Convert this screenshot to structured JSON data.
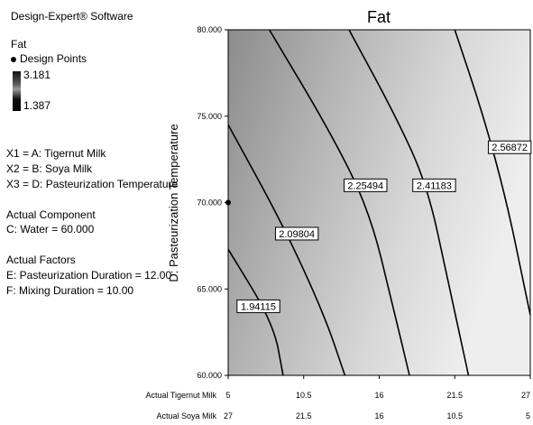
{
  "software_title": "Design-Expert® Software",
  "response_name": "Fat",
  "design_points_label": "Design Points",
  "color_scale": {
    "high": "3.181",
    "low": "1.387",
    "high_color": "#111111",
    "low_color": "#e6e6e6"
  },
  "factor_defs": [
    "X1 = A: Tigernut Milk",
    "X2 = B: Soya Milk",
    "X3 = D: Pasteurization Temperature"
  ],
  "actual_component": {
    "heading": "Actual Component",
    "value": "C: Water = 60.000"
  },
  "actual_factors": {
    "heading": "Actual Factors",
    "items": [
      "E: Pasteurization Duration = 12.00",
      "F: Mixing Duration = 10.00"
    ]
  },
  "chart_data": {
    "type": "contour",
    "title": "Fat",
    "ylabel": "D: Pasteurization Temperature",
    "ylim": [
      60,
      80
    ],
    "y_ticks": [
      "60.000",
      "65.000",
      "70.000",
      "75.000",
      "80.000"
    ],
    "x_axes": [
      {
        "label": "Actual Tigernut Milk",
        "ticks": [
          "5",
          "10.5",
          "16",
          "21.5",
          "27"
        ]
      },
      {
        "label": "Actual Soya Milk",
        "ticks": [
          "27",
          "21.5",
          "16",
          "10.5",
          "5"
        ]
      }
    ],
    "contours": [
      {
        "label": "1.94115",
        "points": [
          [
            5,
            67.3
          ],
          [
            8.3,
            63.0
          ],
          [
            9.0,
            60.0
          ]
        ],
        "label_at": [
          7.2,
          64.0
        ]
      },
      {
        "label": "2.09804",
        "points": [
          [
            5,
            74.5
          ],
          [
            9.0,
            68.7
          ],
          [
            12.0,
            63.5
          ],
          [
            13.5,
            60.0
          ]
        ],
        "label_at": [
          10.0,
          68.2
        ]
      },
      {
        "label": "2.25494",
        "points": [
          [
            8.0,
            80.0
          ],
          [
            12.5,
            74.0
          ],
          [
            15.3,
            69.5
          ],
          [
            17.0,
            64.0
          ],
          [
            18.2,
            60.0
          ]
        ],
        "label_at": [
          15.0,
          71.0
        ]
      },
      {
        "label": "2.41183",
        "points": [
          [
            13.8,
            80.0
          ],
          [
            17.2,
            75.0
          ],
          [
            19.5,
            71.0
          ],
          [
            21.0,
            65.5
          ],
          [
            22.5,
            60.0
          ]
        ],
        "label_at": [
          20.0,
          71.0
        ]
      },
      {
        "label": "2.56872",
        "points": [
          [
            21.5,
            80.0
          ],
          [
            23.6,
            75.0
          ],
          [
            25.3,
            70.0
          ],
          [
            26.6,
            65.0
          ],
          [
            27.0,
            63.5
          ]
        ],
        "label_at": [
          25.5,
          73.2
        ]
      }
    ],
    "design_points": [
      {
        "x": 5,
        "y": 70
      }
    ],
    "shading": "grey gradient, darker at low Tigernut Milk and high temperature"
  }
}
